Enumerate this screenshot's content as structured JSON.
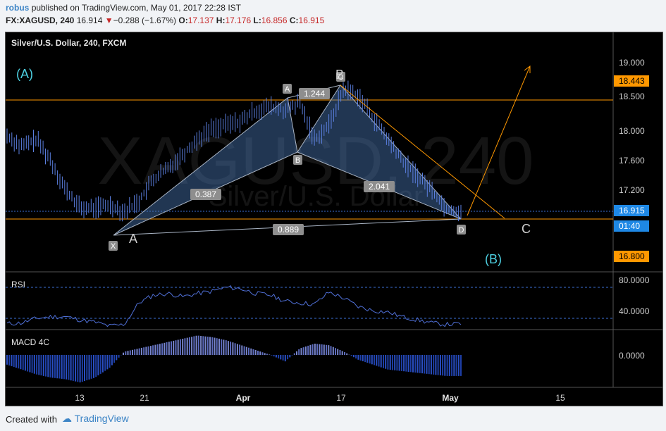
{
  "header": {
    "user": "robus",
    "published": "published on TradingView.com, May 01, 2017 22:28 IST",
    "symbol": "FX:XAGUSD, 240",
    "last": "16.914",
    "arrow": "▼",
    "change": "−0.288 (−1.67%)",
    "o_label": "O:",
    "o_val": "17.137",
    "h_label": "H:",
    "h_val": "17.176",
    "l_label": "L:",
    "l_val": "16.856",
    "c_label": "C:",
    "c_val": "16.915"
  },
  "chart_title": "Silver/U.S. Dollar, 240, FXCM",
  "watermark": {
    "big": "XAGUSD, 240",
    "small": "Silver/U.S. Dollar"
  },
  "wave_labels": {
    "A_paren": "(A)",
    "B_paren": "(B)",
    "C": "C",
    "A": "A",
    "B": "B"
  },
  "pattern_points": {
    "X": "X",
    "A": "A",
    "B": "B",
    "C": "C",
    "D": "D"
  },
  "ratios": {
    "xb": "0.387",
    "ac": "1.244",
    "bd": "2.041",
    "xd": "0.889"
  },
  "price_axis": {
    "ticks": [
      "19.000",
      "18.500",
      "18.000",
      "17.600",
      "17.200"
    ],
    "badges": [
      {
        "text": "18.443",
        "color": "#ff9800"
      },
      {
        "text": "16.915",
        "color": "#1e88e5"
      },
      {
        "text": "01:40",
        "color": "#1e88e5"
      },
      {
        "text": "16.800",
        "color": "#ff9800"
      }
    ]
  },
  "rsi": {
    "label": "RSI",
    "ticks": [
      "80.0000",
      "40.0000"
    ]
  },
  "macd": {
    "label": "MACD 4C",
    "ticks": [
      "0.0000"
    ]
  },
  "time_axis": [
    "13",
    "21",
    "Apr",
    "17",
    "May",
    "15"
  ],
  "colors": {
    "orange": "#ff9800",
    "blue_line": "#4f6fd6",
    "pattern_fill": "#4a78b5",
    "grey_line": "#9aa3ad"
  },
  "chart_data": {
    "type": "candlestick",
    "title": "Silver/U.S. Dollar, 240, FXCM",
    "x_tick_labels": [
      "13",
      "21",
      "Apr",
      "17",
      "May",
      "15"
    ],
    "y_range": [
      16.4,
      19.2
    ],
    "horizontal_levels": [
      18.443,
      16.8
    ],
    "last_price": 16.915,
    "close_path": [
      17.95,
      17.8,
      17.9,
      17.6,
      17.2,
      16.95,
      16.95,
      17.0,
      16.9,
      17.05,
      17.35,
      17.5,
      17.7,
      17.9,
      18.05,
      18.1,
      18.15,
      18.3,
      18.35,
      18.3,
      18.4,
      17.9,
      18.1,
      18.6,
      18.5,
      18.2,
      17.9,
      17.6,
      17.4,
      17.2,
      16.95,
      16.9
    ],
    "harmonic_pattern": {
      "points": [
        {
          "label": "X",
          "price": 16.45
        },
        {
          "label": "A",
          "price": 18.45
        },
        {
          "label": "B",
          "price": 17.7
        },
        {
          "label": "C",
          "price": 18.6
        },
        {
          "label": "D",
          "price": 16.84
        }
      ],
      "ratios": {
        "XB": 0.387,
        "AC": 1.244,
        "BD": 2.041,
        "XD": 0.889
      }
    },
    "rsi": {
      "ticks": [
        80,
        40
      ],
      "values": [
        33,
        34,
        40,
        42,
        42,
        38,
        35,
        30,
        32,
        60,
        70,
        72,
        68,
        72,
        75,
        80,
        78,
        72,
        70,
        62,
        60,
        58,
        74,
        66,
        55,
        50,
        48,
        42,
        38,
        34,
        32,
        33
      ]
    },
    "macd": {
      "ticks": [
        0.0
      ],
      "values": [
        -0.06,
        -0.09,
        -0.12,
        -0.14,
        -0.15,
        -0.17,
        -0.14,
        -0.08,
        0.02,
        0.04,
        0.06,
        0.08,
        0.1,
        0.12,
        0.11,
        0.09,
        0.06,
        0.03,
        0.0,
        -0.04,
        0.04,
        0.07,
        0.06,
        0.02,
        -0.03,
        -0.06,
        -0.09,
        -0.1,
        -0.11,
        -0.12,
        -0.13,
        -0.13
      ]
    }
  }
}
